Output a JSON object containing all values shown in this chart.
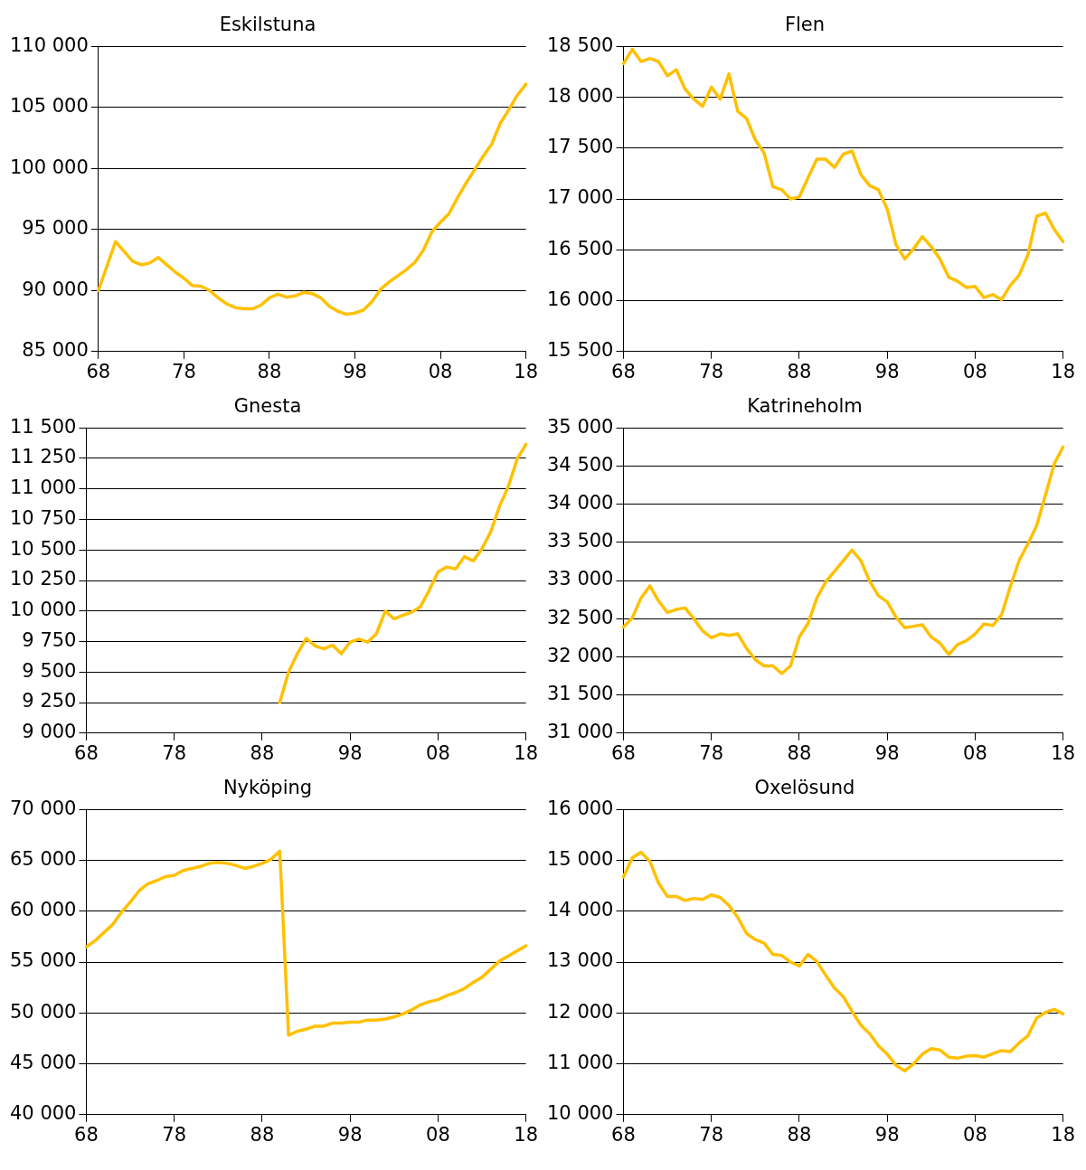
{
  "chart_data": [
    {
      "type": "line",
      "title": "Eskilstuna",
      "categories": [
        "68",
        null,
        null,
        null,
        null,
        null,
        null,
        null,
        null,
        null,
        "78",
        null,
        null,
        null,
        null,
        null,
        null,
        null,
        null,
        null,
        "88",
        null,
        null,
        null,
        null,
        null,
        null,
        null,
        null,
        null,
        "98",
        null,
        null,
        null,
        null,
        null,
        null,
        null,
        null,
        null,
        "08",
        null,
        null,
        null,
        null,
        null,
        null,
        null,
        null,
        null,
        "18"
      ],
      "grid": "y",
      "marker": "none",
      "ylim": [
        85000,
        110000
      ],
      "yticks": [
        {
          "value": 85000,
          "label": "85 000"
        },
        {
          "value": 90000,
          "label": "90 000"
        },
        {
          "value": 95000,
          "label": "95 000"
        },
        {
          "value": 100000,
          "label": "100 000"
        },
        {
          "value": 105000,
          "label": "105 000"
        },
        {
          "value": 110000,
          "label": "110 000"
        }
      ],
      "series": [
        {
          "color": "#ffc000",
          "values": [
            90000,
            92000,
            94000,
            93200,
            92400,
            92100,
            92250,
            92700,
            92100,
            91500,
            91000,
            90400,
            90350,
            90000,
            89400,
            88900,
            88600,
            88500,
            88500,
            88800,
            89400,
            89700,
            89450,
            89550,
            89850,
            89750,
            89400,
            88700,
            88300,
            88050,
            88150,
            88400,
            89100,
            90100,
            90700,
            91200,
            91700,
            92300,
            93300,
            94800,
            95600,
            96300,
            97600,
            98800,
            99900,
            101000,
            102000,
            103700,
            104800,
            106000,
            106900
          ]
        }
      ]
    },
    {
      "type": "line",
      "title": "Flen",
      "categories": [
        "68",
        null,
        null,
        null,
        null,
        null,
        null,
        null,
        null,
        null,
        "78",
        null,
        null,
        null,
        null,
        null,
        null,
        null,
        null,
        null,
        "88",
        null,
        null,
        null,
        null,
        null,
        null,
        null,
        null,
        null,
        "98",
        null,
        null,
        null,
        null,
        null,
        null,
        null,
        null,
        null,
        "08",
        null,
        null,
        null,
        null,
        null,
        null,
        null,
        null,
        null,
        "18"
      ],
      "grid": "y",
      "marker": "none",
      "ylim": [
        15500,
        18500
      ],
      "yticks": [
        {
          "value": 15500,
          "label": "15 500"
        },
        {
          "value": 16000,
          "label": "16 000"
        },
        {
          "value": 16500,
          "label": "16 500"
        },
        {
          "value": 17000,
          "label": "17 000"
        },
        {
          "value": 17500,
          "label": "17 500"
        },
        {
          "value": 18000,
          "label": "18 000"
        },
        {
          "value": 18500,
          "label": "18 500"
        }
      ],
      "series": [
        {
          "color": "#ffc000",
          "values": [
            18330,
            18470,
            18350,
            18380,
            18350,
            18210,
            18270,
            18080,
            17980,
            17910,
            18100,
            17980,
            18230,
            17860,
            17790,
            17580,
            17450,
            17120,
            17090,
            17000,
            17020,
            17210,
            17390,
            17390,
            17310,
            17440,
            17470,
            17240,
            17130,
            17090,
            16900,
            16550,
            16410,
            16510,
            16630,
            16530,
            16410,
            16230,
            16190,
            16130,
            16140,
            16030,
            16060,
            16010,
            16150,
            16250,
            16450,
            16830,
            16860,
            16700,
            16580
          ]
        }
      ]
    },
    {
      "type": "line",
      "title": "Gnesta",
      "categories": [
        "68",
        null,
        null,
        null,
        null,
        null,
        null,
        null,
        null,
        null,
        "78",
        null,
        null,
        null,
        null,
        null,
        null,
        null,
        null,
        null,
        "88",
        null,
        null,
        null,
        null,
        null,
        null,
        null,
        null,
        null,
        "98",
        null,
        null,
        null,
        null,
        null,
        null,
        null,
        null,
        null,
        "08",
        null,
        null,
        null,
        null,
        null,
        null,
        null,
        null,
        null,
        "18"
      ],
      "grid": "y",
      "marker": "none",
      "ylim": [
        9000,
        11500
      ],
      "yticks": [
        {
          "value": 9000,
          "label": "9 000"
        },
        {
          "value": 9250,
          "label": "9 250"
        },
        {
          "value": 9500,
          "label": "9 500"
        },
        {
          "value": 9750,
          "label": "9 750"
        },
        {
          "value": 10000,
          "label": "10 000"
        },
        {
          "value": 10250,
          "label": "10 250"
        },
        {
          "value": 10500,
          "label": "10 500"
        },
        {
          "value": 10750,
          "label": "10 750"
        },
        {
          "value": 11000,
          "label": "11 000"
        },
        {
          "value": 11250,
          "label": "11 250"
        },
        {
          "value": 11500,
          "label": "11 500"
        }
      ],
      "series": [
        {
          "color": "#ffc000",
          "values": [
            null,
            null,
            null,
            null,
            null,
            null,
            null,
            null,
            null,
            null,
            null,
            null,
            null,
            null,
            null,
            null,
            null,
            null,
            null,
            null,
            null,
            null,
            9250,
            9500,
            9650,
            9775,
            9715,
            9690,
            9720,
            9650,
            9745,
            9770,
            9745,
            9815,
            10000,
            9935,
            9965,
            9990,
            10035,
            10170,
            10320,
            10360,
            10345,
            10445,
            10410,
            10510,
            10650,
            10860,
            11020,
            11245,
            11365
          ]
        }
      ]
    },
    {
      "type": "line",
      "title": "Katrineholm",
      "categories": [
        "68",
        null,
        null,
        null,
        null,
        null,
        null,
        null,
        null,
        null,
        "78",
        null,
        null,
        null,
        null,
        null,
        null,
        null,
        null,
        null,
        "88",
        null,
        null,
        null,
        null,
        null,
        null,
        null,
        null,
        null,
        "98",
        null,
        null,
        null,
        null,
        null,
        null,
        null,
        null,
        null,
        "08",
        null,
        null,
        null,
        null,
        null,
        null,
        null,
        null,
        null,
        "18"
      ],
      "grid": "y",
      "marker": "none",
      "ylim": [
        31000,
        35000
      ],
      "yticks": [
        {
          "value": 31000,
          "label": "31 000"
        },
        {
          "value": 31500,
          "label": "31 500"
        },
        {
          "value": 32000,
          "label": "32 000"
        },
        {
          "value": 32500,
          "label": "32 500"
        },
        {
          "value": 33000,
          "label": "33 000"
        },
        {
          "value": 33500,
          "label": "33 500"
        },
        {
          "value": 34000,
          "label": "34 000"
        },
        {
          "value": 34500,
          "label": "34 500"
        },
        {
          "value": 35000,
          "label": "35 000"
        }
      ],
      "series": [
        {
          "color": "#ffc000",
          "values": [
            32390,
            32510,
            32770,
            32930,
            32730,
            32580,
            32620,
            32640,
            32500,
            32340,
            32250,
            32300,
            32280,
            32300,
            32110,
            31960,
            31880,
            31880,
            31780,
            31880,
            32260,
            32440,
            32770,
            32980,
            33120,
            33260,
            33400,
            33260,
            32990,
            32800,
            32720,
            32520,
            32380,
            32400,
            32420,
            32260,
            32180,
            32030,
            32160,
            32210,
            32300,
            32430,
            32410,
            32550,
            32920,
            33260,
            33480,
            33720,
            34120,
            34530,
            34750
          ]
        }
      ]
    },
    {
      "type": "line",
      "title": "Nyköping",
      "categories": [
        "68",
        null,
        null,
        null,
        null,
        null,
        null,
        null,
        null,
        null,
        "78",
        null,
        null,
        null,
        null,
        null,
        null,
        null,
        null,
        null,
        "88",
        null,
        null,
        null,
        null,
        null,
        null,
        null,
        null,
        null,
        "98",
        null,
        null,
        null,
        null,
        null,
        null,
        null,
        null,
        null,
        "08",
        null,
        null,
        null,
        null,
        null,
        null,
        null,
        null,
        null,
        "18"
      ],
      "grid": "y",
      "marker": "none",
      "ylim": [
        40000,
        70000
      ],
      "yticks": [
        {
          "value": 40000,
          "label": "40 000"
        },
        {
          "value": 45000,
          "label": "45 000"
        },
        {
          "value": 50000,
          "label": "50 000"
        },
        {
          "value": 55000,
          "label": "55 000"
        },
        {
          "value": 60000,
          "label": "60 000"
        },
        {
          "value": 65000,
          "label": "65 000"
        },
        {
          "value": 70000,
          "label": "70 000"
        }
      ],
      "series": [
        {
          "color": "#ffc000",
          "values": [
            56500,
            57100,
            57900,
            58700,
            59900,
            60900,
            62000,
            62700,
            63000,
            63400,
            63500,
            64000,
            64200,
            64400,
            64700,
            64800,
            64700,
            64500,
            64200,
            64400,
            64700,
            65100,
            65900,
            47800,
            48200,
            48400,
            48700,
            48700,
            49000,
            49000,
            49100,
            49100,
            49300,
            49300,
            49400,
            49600,
            49900,
            50300,
            50800,
            51100,
            51300,
            51700,
            52000,
            52400,
            53000,
            53500,
            54300,
            55100,
            55600,
            56100,
            56600
          ]
        }
      ]
    },
    {
      "type": "line",
      "title": "Oxelösund",
      "categories": [
        "68",
        null,
        null,
        null,
        null,
        null,
        null,
        null,
        null,
        null,
        "78",
        null,
        null,
        null,
        null,
        null,
        null,
        null,
        null,
        null,
        "88",
        null,
        null,
        null,
        null,
        null,
        null,
        null,
        null,
        null,
        "98",
        null,
        null,
        null,
        null,
        null,
        null,
        null,
        null,
        null,
        "08",
        null,
        null,
        null,
        null,
        null,
        null,
        null,
        null,
        null,
        "18"
      ],
      "grid": "y",
      "marker": "none",
      "ylim": [
        10000,
        16000
      ],
      "yticks": [
        {
          "value": 10000,
          "label": "10 000"
        },
        {
          "value": 11000,
          "label": "11 000"
        },
        {
          "value": 12000,
          "label": "12 000"
        },
        {
          "value": 13000,
          "label": "13 000"
        },
        {
          "value": 14000,
          "label": "14 000"
        },
        {
          "value": 15000,
          "label": "15 000"
        },
        {
          "value": 16000,
          "label": "16 000"
        }
      ],
      "series": [
        {
          "color": "#ffc000",
          "values": [
            14670,
            15050,
            15160,
            14980,
            14550,
            14290,
            14290,
            14210,
            14250,
            14230,
            14320,
            14270,
            14110,
            13880,
            13560,
            13440,
            13370,
            13150,
            13130,
            13000,
            12920,
            13150,
            13010,
            12740,
            12490,
            12320,
            12030,
            11760,
            11590,
            11350,
            11190,
            10970,
            10860,
            11000,
            11190,
            11300,
            11270,
            11130,
            11110,
            11150,
            11160,
            11130,
            11200,
            11260,
            11240,
            11410,
            11550,
            11900,
            12010,
            12070,
            11980
          ]
        }
      ]
    }
  ]
}
